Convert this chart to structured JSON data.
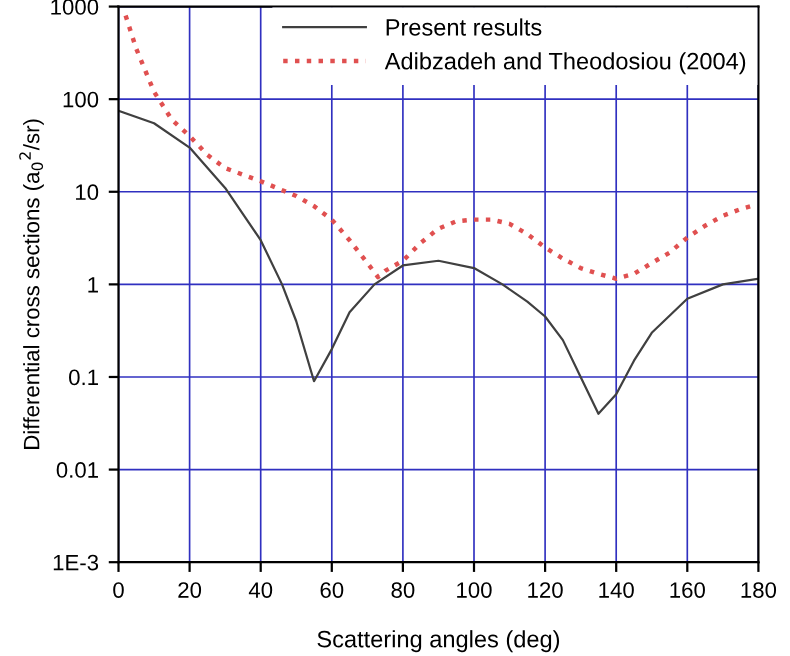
{
  "chart_data": {
    "type": "line",
    "xlabel": "Scattering angles (deg)",
    "ylabel": "Differential cross sections (a$_{0}$$^{2}$/sr)",
    "log": "y",
    "xlim": [
      0,
      180
    ],
    "xticks": [
      0,
      20,
      40,
      60,
      80,
      100,
      120,
      140,
      160,
      180
    ],
    "ylim": [
      0.001,
      1000
    ],
    "yticks": [
      {
        "value": 0.001,
        "label": "1E-3"
      },
      0.01,
      0.1,
      1,
      10,
      100,
      1000
    ],
    "grid": true,
    "legend": "top right",
    "series": [
      {
        "name": "Present results",
        "color": "#404040",
        "line_style": "solid",
        "x": [
          0,
          10,
          20,
          30,
          40,
          46,
          50,
          55,
          60,
          65,
          72,
          80,
          90,
          100,
          108,
          115,
          120,
          125,
          130,
          135,
          140,
          145,
          150,
          160,
          170,
          180
        ],
        "values": [
          75,
          55,
          30,
          11,
          3,
          1,
          0.4,
          0.09,
          0.2,
          0.5,
          1,
          1.6,
          1.8,
          1.5,
          1,
          0.65,
          0.45,
          0.25,
          0.1,
          0.04,
          0.065,
          0.15,
          0.3,
          0.7,
          1.0,
          1.15
        ]
      },
      {
        "name": "Adibzadeh and Theodosiou (2004)",
        "color": "#e05050",
        "line_style": "dotted",
        "x": [
          2,
          5,
          10,
          15,
          20,
          25,
          30,
          40,
          50,
          55,
          60,
          65,
          70,
          73,
          75,
          80,
          85,
          90,
          95,
          100,
          105,
          110,
          115,
          120,
          125,
          130,
          135,
          140,
          145,
          150,
          155,
          160,
          165,
          170,
          175,
          178
        ],
        "values": [
          800,
          350,
          120,
          60,
          40,
          25,
          18,
          13,
          9,
          7,
          5,
          3,
          1.7,
          1.2,
          1.4,
          1.8,
          2.8,
          4,
          4.8,
          5,
          5,
          4.5,
          3.5,
          2.5,
          1.9,
          1.5,
          1.3,
          1.15,
          1.3,
          1.7,
          2.2,
          3.2,
          4.3,
          5.5,
          6.5,
          7
        ]
      }
    ]
  }
}
